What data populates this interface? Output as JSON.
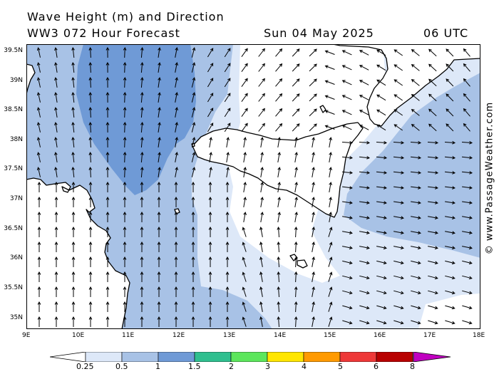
{
  "header": {
    "title": "Wave Height (m) and Direction",
    "model": "WW3 072 Hour Forecast",
    "date": "Sun 04 May 2025",
    "time": "06 UTC"
  },
  "axes": {
    "lat_labels": [
      "39.5N",
      "39N",
      "38.5N",
      "38N",
      "37.5N",
      "37N",
      "36.5N",
      "36N",
      "35.5N",
      "35N"
    ],
    "lon_labels": [
      "9E",
      "10E",
      "11E",
      "12E",
      "13E",
      "14E",
      "15E",
      "16E",
      "17E",
      "18E"
    ]
  },
  "colorbar": {
    "labels": [
      "0.25",
      "0.5",
      "1",
      "1.5",
      "2",
      "3",
      "4",
      "5",
      "6",
      "8"
    ],
    "colors": [
      "#dde8f8",
      "#a8c2e6",
      "#6f9ad6",
      "#2fbf8f",
      "#5ce65c",
      "#ffe600",
      "#ff9a00",
      "#ee3838",
      "#b80000",
      "#c000c0"
    ]
  },
  "credit": "© www.PassageWeather.com",
  "colors": {
    "wave_lt_025": "#ffffff",
    "wave_025_05": "#dde8f8",
    "wave_05_1": "#a8c2e6",
    "wave_1_15": "#6f9ad6",
    "land": "#ffffff",
    "coast": "#000000"
  }
}
